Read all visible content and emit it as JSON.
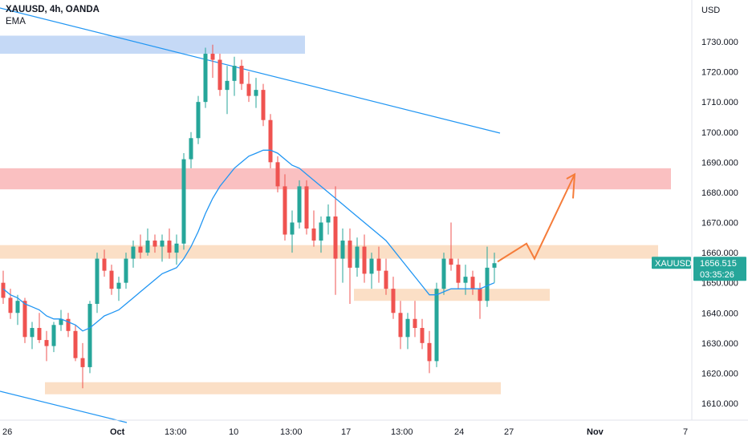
{
  "header": {
    "title": "XAUUSD, 4h, OANDA",
    "indicator": "EMA"
  },
  "colors": {
    "up": "#26a69a",
    "down": "#ef5350",
    "candle_body": "#131722",
    "ema": "#2196f3",
    "trendline": "#2196f3",
    "zone_blue": "#bbd2f5",
    "zone_red": "#f9b9ba",
    "zone_orange": "#fbdcc0",
    "arrow": "#f57c3a",
    "tag_bg": "#26a69a"
  },
  "chart_data": {
    "type": "candlestick",
    "symbol": "XAUUSD",
    "timeframe": "4h",
    "currency_label": "USD",
    "y_ticks": [
      "1730.000",
      "1720.000",
      "1710.000",
      "1700.000",
      "1690.000",
      "1680.000",
      "1670.000",
      "1660.000",
      "1650.000",
      "1640.000",
      "1630.000",
      "1620.000",
      "1610.000"
    ],
    "y_tick_values": [
      1730,
      1720,
      1710,
      1700,
      1690,
      1680,
      1670,
      1660,
      1650,
      1640,
      1630,
      1620,
      1610
    ],
    "ylim": [
      1603,
      1733.5
    ],
    "x_labels": [
      {
        "label": "26",
        "bold": false
      },
      {
        "label": "Oct",
        "bold": true
      },
      {
        "label": "13:00",
        "bold": false
      },
      {
        "label": "10",
        "bold": false
      },
      {
        "label": "13:00",
        "bold": false
      },
      {
        "label": "17",
        "bold": false
      },
      {
        "label": "13:00",
        "bold": false
      },
      {
        "label": "24",
        "bold": false
      },
      {
        "label": "27",
        "bold": false
      },
      {
        "label": "Nov",
        "bold": true
      },
      {
        "label": "7",
        "bold": false
      }
    ],
    "last_price": {
      "symbol": "XAUUSD",
      "price": "1656.515",
      "countdown": "03:35:26",
      "value": 1656.5
    },
    "zones": [
      {
        "kind": "blue",
        "from": 1726,
        "to": 1732
      },
      {
        "kind": "red",
        "from": 1681,
        "to": 1688
      },
      {
        "kind": "orange",
        "from": 1658,
        "to": 1662.5
      },
      {
        "kind": "orange",
        "from": 1644,
        "to": 1648
      },
      {
        "kind": "orange",
        "from": 1613,
        "to": 1617
      }
    ],
    "candles": [
      [
        1650,
        1654,
        1643,
        1645
      ],
      [
        1645,
        1648,
        1638,
        1640
      ],
      [
        1640,
        1646,
        1636,
        1644
      ],
      [
        1644,
        1645,
        1630,
        1632
      ],
      [
        1632,
        1637,
        1628,
        1635
      ],
      [
        1635,
        1640,
        1630,
        1631
      ],
      [
        1631,
        1634,
        1624,
        1629
      ],
      [
        1629,
        1637,
        1627,
        1636
      ],
      [
        1636,
        1641,
        1634,
        1638
      ],
      [
        1638,
        1640,
        1632,
        1634
      ],
      [
        1634,
        1636,
        1624,
        1625
      ],
      [
        1625,
        1630,
        1615,
        1622
      ],
      [
        1622,
        1644,
        1620,
        1643
      ],
      [
        1643,
        1660,
        1640,
        1658
      ],
      [
        1658,
        1661,
        1652,
        1654
      ],
      [
        1654,
        1656,
        1646,
        1648
      ],
      [
        1648,
        1652,
        1644,
        1650
      ],
      [
        1650,
        1660,
        1648,
        1658
      ],
      [
        1658,
        1664,
        1655,
        1662
      ],
      [
        1662,
        1666,
        1658,
        1660
      ],
      [
        1660,
        1668,
        1659,
        1664
      ],
      [
        1664,
        1666,
        1660,
        1662
      ],
      [
        1662,
        1666,
        1657,
        1664
      ],
      [
        1664,
        1668,
        1658,
        1660
      ],
      [
        1660,
        1666,
        1656,
        1663
      ],
      [
        1663,
        1693,
        1661,
        1691
      ],
      [
        1691,
        1700,
        1688,
        1698
      ],
      [
        1698,
        1712,
        1696,
        1710
      ],
      [
        1710,
        1728,
        1708,
        1726
      ],
      [
        1726,
        1729,
        1718,
        1724
      ],
      [
        1724,
        1726,
        1712,
        1714
      ],
      [
        1714,
        1722,
        1706,
        1717
      ],
      [
        1717,
        1725,
        1712,
        1722
      ],
      [
        1722,
        1724,
        1714,
        1716
      ],
      [
        1716,
        1720,
        1710,
        1712
      ],
      [
        1712,
        1718,
        1708,
        1714
      ],
      [
        1714,
        1716,
        1702,
        1704
      ],
      [
        1704,
        1706,
        1688,
        1690
      ],
      [
        1690,
        1692,
        1680,
        1682
      ],
      [
        1682,
        1686,
        1664,
        1666
      ],
      [
        1666,
        1674,
        1660,
        1670
      ],
      [
        1670,
        1684,
        1668,
        1682
      ],
      [
        1682,
        1684,
        1666,
        1668
      ],
      [
        1668,
        1674,
        1662,
        1664
      ],
      [
        1664,
        1672,
        1660,
        1670
      ],
      [
        1670,
        1676,
        1666,
        1672
      ],
      [
        1672,
        1682,
        1646,
        1658
      ],
      [
        1658,
        1668,
        1650,
        1664
      ],
      [
        1664,
        1668,
        1643,
        1655
      ],
      [
        1655,
        1665,
        1652,
        1662
      ],
      [
        1662,
        1666,
        1650,
        1653
      ],
      [
        1653,
        1660,
        1648,
        1658
      ],
      [
        1658,
        1662,
        1650,
        1654
      ],
      [
        1654,
        1658,
        1646,
        1648
      ],
      [
        1648,
        1652,
        1638,
        1640
      ],
      [
        1640,
        1644,
        1628,
        1632
      ],
      [
        1632,
        1640,
        1628,
        1638
      ],
      [
        1638,
        1644,
        1632,
        1635
      ],
      [
        1635,
        1638,
        1628,
        1630
      ],
      [
        1630,
        1634,
        1620,
        1624
      ],
      [
        1624,
        1650,
        1622,
        1648
      ],
      [
        1648,
        1660,
        1646,
        1658
      ],
      [
        1658,
        1670,
        1654,
        1656
      ],
      [
        1656,
        1658,
        1648,
        1650
      ],
      [
        1650,
        1656,
        1646,
        1652
      ],
      [
        1652,
        1654,
        1646,
        1648
      ],
      [
        1648,
        1650,
        1638,
        1644
      ],
      [
        1644,
        1662,
        1642,
        1655
      ],
      [
        1655,
        1660,
        1650,
        1656.5
      ]
    ],
    "ema": [
      1648,
      1646,
      1645,
      1643,
      1642,
      1641,
      1639,
      1638,
      1638,
      1637,
      1636,
      1634,
      1635,
      1637,
      1639,
      1640,
      1641,
      1643,
      1645,
      1647,
      1649,
      1651,
      1653,
      1654,
      1655,
      1658,
      1662,
      1667,
      1673,
      1678,
      1682,
      1685,
      1688,
      1690,
      1692,
      1693,
      1694,
      1694,
      1693,
      1691,
      1689,
      1688,
      1686,
      1684,
      1682,
      1680,
      1678,
      1676,
      1674,
      1672,
      1670,
      1668,
      1666,
      1664,
      1661,
      1658,
      1655,
      1652,
      1649,
      1646,
      1646,
      1647,
      1648,
      1648,
      1648,
      1648,
      1648,
      1649,
      1650
    ]
  }
}
